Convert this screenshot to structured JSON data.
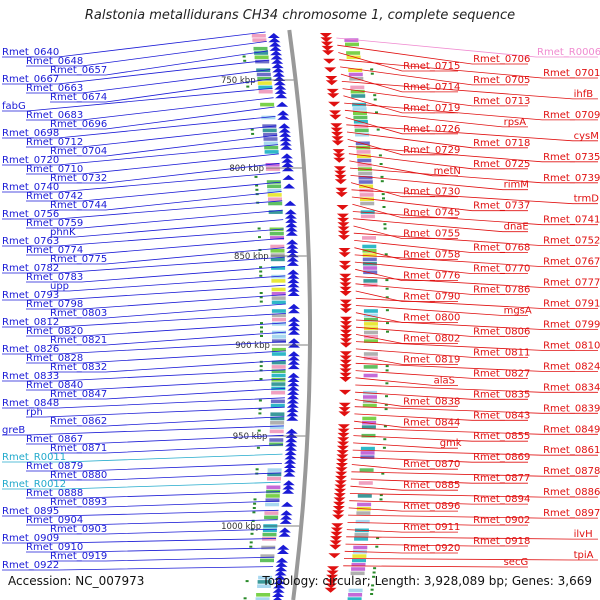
{
  "title": "Ralstonia metallidurans CH34 chromosome 1, complete sequence",
  "footer": {
    "accession": "Accession: NC_007973",
    "topology": "Topology: circular; Length: 3,928,089 bp; Genes: 3,669"
  },
  "colors": {
    "minus_strand": "#1a1ad6",
    "plus_strand": "#e01010",
    "rna_minus": "#22aacc",
    "rna_plus": "#f08ad0",
    "backbone": "#999999",
    "tick": "#2a8a2a"
  },
  "scale_ticks": [
    "750 kbp",
    "800 kbp",
    "850 kbp",
    "900 kbp",
    "950 kbp",
    "1000 kbp"
  ],
  "left_labels": [
    {
      "text": "Rmet_0640",
      "type": "gene"
    },
    {
      "text": "Rmet_0648",
      "type": "gene"
    },
    {
      "text": "Rmet_0657",
      "type": "gene"
    },
    {
      "text": "Rmet_0667",
      "type": "gene"
    },
    {
      "text": "Rmet_0663",
      "type": "gene"
    },
    {
      "text": "Rmet_0674",
      "type": "gene"
    },
    {
      "text": "fabG",
      "type": "gene"
    },
    {
      "text": "Rmet_0683",
      "type": "gene"
    },
    {
      "text": "Rmet_0696",
      "type": "gene"
    },
    {
      "text": "Rmet_0698",
      "type": "gene"
    },
    {
      "text": "Rmet_0712",
      "type": "gene"
    },
    {
      "text": "Rmet_0704",
      "type": "gene"
    },
    {
      "text": "Rmet_0720",
      "type": "gene"
    },
    {
      "text": "Rmet_0710",
      "type": "gene"
    },
    {
      "text": "Rmet_0732",
      "type": "gene"
    },
    {
      "text": "Rmet_0740",
      "type": "gene"
    },
    {
      "text": "Rmet_0742",
      "type": "gene"
    },
    {
      "text": "Rmet_0744",
      "type": "gene"
    },
    {
      "text": "Rmet_0756",
      "type": "gene"
    },
    {
      "text": "Rmet_0759",
      "type": "gene"
    },
    {
      "text": "phnK",
      "type": "gene"
    },
    {
      "text": "Rmet_0763",
      "type": "gene"
    },
    {
      "text": "Rmet_0774",
      "type": "gene"
    },
    {
      "text": "Rmet_0775",
      "type": "gene"
    },
    {
      "text": "Rmet_0782",
      "type": "gene"
    },
    {
      "text": "Rmet_0783",
      "type": "gene"
    },
    {
      "text": "upp",
      "type": "gene"
    },
    {
      "text": "Rmet_0793",
      "type": "gene"
    },
    {
      "text": "Rmet_0798",
      "type": "gene"
    },
    {
      "text": "Rmet_0803",
      "type": "gene"
    },
    {
      "text": "Rmet_0812",
      "type": "gene"
    },
    {
      "text": "Rmet_0820",
      "type": "gene"
    },
    {
      "text": "Rmet_0821",
      "type": "gene"
    },
    {
      "text": "Rmet_0826",
      "type": "gene"
    },
    {
      "text": "Rmet_0828",
      "type": "gene"
    },
    {
      "text": "Rmet_0832",
      "type": "gene"
    },
    {
      "text": "Rmet_0833",
      "type": "gene"
    },
    {
      "text": "Rmet_0840",
      "type": "gene"
    },
    {
      "text": "Rmet_0847",
      "type": "gene"
    },
    {
      "text": "Rmet_0848",
      "type": "gene"
    },
    {
      "text": "rph",
      "type": "gene"
    },
    {
      "text": "Rmet_0862",
      "type": "gene"
    },
    {
      "text": "greB",
      "type": "gene"
    },
    {
      "text": "Rmet_0867",
      "type": "gene"
    },
    {
      "text": "Rmet_0871",
      "type": "gene"
    },
    {
      "text": "Rmet_R0011",
      "type": "rna"
    },
    {
      "text": "Rmet_0879",
      "type": "gene"
    },
    {
      "text": "Rmet_0880",
      "type": "gene"
    },
    {
      "text": "Rmet_R0012",
      "type": "rna"
    },
    {
      "text": "Rmet_0888",
      "type": "gene"
    },
    {
      "text": "Rmet_0893",
      "type": "gene"
    },
    {
      "text": "Rmet_0895",
      "type": "gene"
    },
    {
      "text": "Rmet_0904",
      "type": "gene"
    },
    {
      "text": "Rmet_0903",
      "type": "gene"
    },
    {
      "text": "Rmet_0909",
      "type": "gene"
    },
    {
      "text": "Rmet_0910",
      "type": "gene"
    },
    {
      "text": "Rmet_0919",
      "type": "gene"
    },
    {
      "text": "Rmet_0922",
      "type": "gene"
    }
  ],
  "right_labels": [
    {
      "text": "Rmet_R0006",
      "type": "rna"
    },
    {
      "text": "Rmet_0706",
      "type": "gene"
    },
    {
      "text": "Rmet_0715",
      "type": "gene"
    },
    {
      "text": "Rmet_0701",
      "type": "gene"
    },
    {
      "text": "Rmet_0705",
      "type": "gene"
    },
    {
      "text": "Rmet_0714",
      "type": "gene"
    },
    {
      "text": "ihfB",
      "type": "gene"
    },
    {
      "text": "Rmet_0713",
      "type": "gene"
    },
    {
      "text": "Rmet_0719",
      "type": "gene"
    },
    {
      "text": "Rmet_0709",
      "type": "gene"
    },
    {
      "text": "rpsA",
      "type": "gene"
    },
    {
      "text": "Rmet_0726",
      "type": "gene"
    },
    {
      "text": "cysM",
      "type": "gene"
    },
    {
      "text": "Rmet_0718",
      "type": "gene"
    },
    {
      "text": "Rmet_0729",
      "type": "gene"
    },
    {
      "text": "Rmet_0735",
      "type": "gene"
    },
    {
      "text": "Rmet_0725",
      "type": "gene"
    },
    {
      "text": "metN",
      "type": "gene"
    },
    {
      "text": "Rmet_0739",
      "type": "gene"
    },
    {
      "text": "rimM",
      "type": "gene"
    },
    {
      "text": "Rmet_0730",
      "type": "gene"
    },
    {
      "text": "trmD",
      "type": "gene"
    },
    {
      "text": "Rmet_0737",
      "type": "gene"
    },
    {
      "text": "Rmet_0745",
      "type": "gene"
    },
    {
      "text": "Rmet_0741",
      "type": "gene"
    },
    {
      "text": "dnaE",
      "type": "gene"
    },
    {
      "text": "Rmet_0755",
      "type": "gene"
    },
    {
      "text": "Rmet_0752",
      "type": "gene"
    },
    {
      "text": "Rmet_0768",
      "type": "gene"
    },
    {
      "text": "Rmet_0758",
      "type": "gene"
    },
    {
      "text": "Rmet_0767",
      "type": "gene"
    },
    {
      "text": "Rmet_0770",
      "type": "gene"
    },
    {
      "text": "Rmet_0776",
      "type": "gene"
    },
    {
      "text": "Rmet_0777",
      "type": "gene"
    },
    {
      "text": "Rmet_0786",
      "type": "gene"
    },
    {
      "text": "Rmet_0790",
      "type": "gene"
    },
    {
      "text": "Rmet_0791",
      "type": "gene"
    },
    {
      "text": "mgsA",
      "type": "gene"
    },
    {
      "text": "Rmet_0800",
      "type": "gene"
    },
    {
      "text": "Rmet_0799",
      "type": "gene"
    },
    {
      "text": "Rmet_0806",
      "type": "gene"
    },
    {
      "text": "Rmet_0802",
      "type": "gene"
    },
    {
      "text": "Rmet_0810",
      "type": "gene"
    },
    {
      "text": "Rmet_0811",
      "type": "gene"
    },
    {
      "text": "Rmet_0819",
      "type": "gene"
    },
    {
      "text": "Rmet_0824",
      "type": "gene"
    },
    {
      "text": "Rmet_0827",
      "type": "gene"
    },
    {
      "text": "alaS",
      "type": "gene"
    },
    {
      "text": "Rmet_0834",
      "type": "gene"
    },
    {
      "text": "Rmet_0835",
      "type": "gene"
    },
    {
      "text": "Rmet_0838",
      "type": "gene"
    },
    {
      "text": "Rmet_0839",
      "type": "gene"
    },
    {
      "text": "Rmet_0843",
      "type": "gene"
    },
    {
      "text": "Rmet_0844",
      "type": "gene"
    },
    {
      "text": "Rmet_0849",
      "type": "gene"
    },
    {
      "text": "Rmet_0855",
      "type": "gene"
    },
    {
      "text": "gmk",
      "type": "gene"
    },
    {
      "text": "Rmet_0861",
      "type": "gene"
    },
    {
      "text": "Rmet_0869",
      "type": "gene"
    },
    {
      "text": "Rmet_0870",
      "type": "gene"
    },
    {
      "text": "Rmet_0878",
      "type": "gene"
    },
    {
      "text": "Rmet_0877",
      "type": "gene"
    },
    {
      "text": "Rmet_0885",
      "type": "gene"
    },
    {
      "text": "Rmet_0886",
      "type": "gene"
    },
    {
      "text": "Rmet_0894",
      "type": "gene"
    },
    {
      "text": "Rmet_0896",
      "type": "gene"
    },
    {
      "text": "Rmet_0897",
      "type": "gene"
    },
    {
      "text": "Rmet_0902",
      "type": "gene"
    },
    {
      "text": "Rmet_0911",
      "type": "gene"
    },
    {
      "text": "ilvH",
      "type": "gene"
    },
    {
      "text": "Rmet_0918",
      "type": "gene"
    },
    {
      "text": "Rmet_0920",
      "type": "gene"
    },
    {
      "text": "tpiA",
      "type": "gene"
    },
    {
      "text": "secG",
      "type": "gene"
    }
  ]
}
